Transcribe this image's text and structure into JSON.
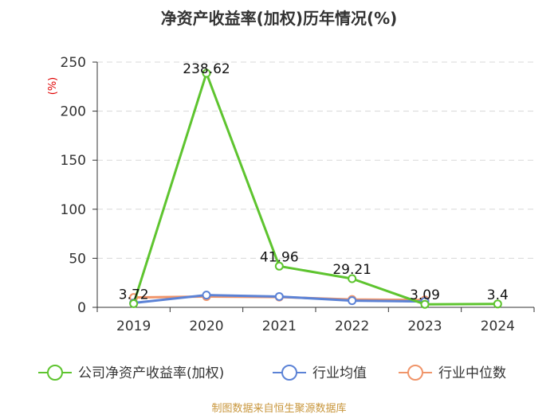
{
  "chart_data": {
    "type": "line",
    "title": "净资产收益率(加权)历年情况(%)",
    "ylabel": "(%)",
    "xlabel": "",
    "categories": [
      "2019",
      "2020",
      "2021",
      "2022",
      "2023",
      "2024"
    ],
    "ylim": [
      0,
      250
    ],
    "yticks": [
      0,
      50,
      100,
      150,
      200,
      250
    ],
    "grid": true,
    "legend_position": "bottom",
    "series": [
      {
        "name": "公司净资产收益率(加权)",
        "color": "#5ec42f",
        "values": [
          3.72,
          238.62,
          41.96,
          29.21,
          3.09,
          3.4
        ],
        "labels": [
          "3.72",
          "238.62",
          "41.96",
          "29.21",
          "3.09",
          "3.4"
        ]
      },
      {
        "name": "行业均值",
        "color": "#5b82d6",
        "values": [
          4.5,
          12.5,
          11.0,
          6.8,
          6.0,
          null
        ]
      },
      {
        "name": "行业中位数",
        "color": "#f0956a",
        "values": [
          10.0,
          11.0,
          10.5,
          8.0,
          7.5,
          null
        ]
      }
    ],
    "source": "制图数据来自恒生聚源数据库"
  }
}
